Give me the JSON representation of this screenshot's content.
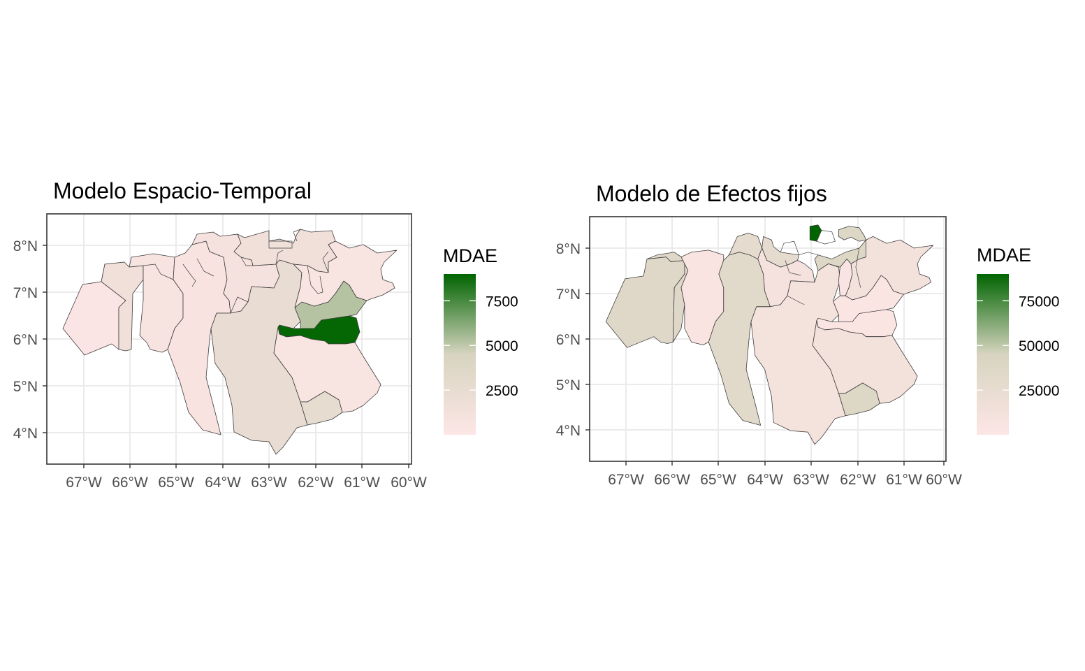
{
  "chart_data": [
    {
      "type": "choropleth",
      "title": "Modelo Espacio-Temporal",
      "x_ticks": [
        "67°W",
        "66°W",
        "65°W",
        "64°W",
        "63°W",
        "62°W",
        "61°W",
        "60°W"
      ],
      "y_ticks": [
        "4°N",
        "5°N",
        "6°N",
        "7°N",
        "8°N"
      ],
      "xlim": [
        -67.8,
        -59.95
      ],
      "ylim": [
        3.35,
        8.7
      ],
      "legend": {
        "title": "MDAE",
        "range": [
          0,
          9000
        ],
        "breaks": [
          2500,
          5000,
          7500
        ],
        "labels": [
          "2500",
          "5000",
          "7500"
        ],
        "low_color": "#fde6e6",
        "mid_color": "#d7d4c0",
        "high_color": "#006400"
      },
      "grid": true,
      "regions": [
        {
          "value": 200
        },
        {
          "value": 1400
        },
        {
          "value": 700
        },
        {
          "value": 650
        },
        {
          "value": 900
        },
        {
          "value": 1500
        },
        {
          "value": 2400
        },
        {
          "value": 5200
        },
        {
          "value": 8900
        },
        {
          "value": 600
        },
        {
          "value": 2600
        }
      ]
    },
    {
      "type": "choropleth",
      "title": "Modelo de Efectos fijos",
      "x_ticks": [
        "67°W",
        "66°W",
        "65°W",
        "64°W",
        "63°W",
        "62°W",
        "61°W",
        "60°W"
      ],
      "y_ticks": [
        "4°N",
        "5°N",
        "6°N",
        "7°N",
        "8°N"
      ],
      "xlim": [
        -67.8,
        -59.95
      ],
      "ylim": [
        3.35,
        8.7
      ],
      "legend": {
        "title": "MDAE",
        "range": [
          0,
          90000
        ],
        "breaks": [
          25000,
          50000,
          75000
        ],
        "labels": [
          "25000",
          "50000",
          "75000"
        ],
        "low_color": "#fde6e6",
        "mid_color": "#d7d4c0",
        "high_color": "#006400"
      },
      "grid": true,
      "regions": [
        {
          "value": 36000
        },
        {
          "value": 36000
        },
        {
          "value": 5000
        },
        {
          "value": 33000
        },
        {
          "value": 28000
        },
        {
          "value": 10000
        },
        {
          "value": 11000
        },
        {
          "value": 4000
        },
        {
          "value": 3000
        },
        {
          "value": 12000
        },
        {
          "value": 38000
        },
        {
          "value": 90000
        }
      ]
    }
  ]
}
